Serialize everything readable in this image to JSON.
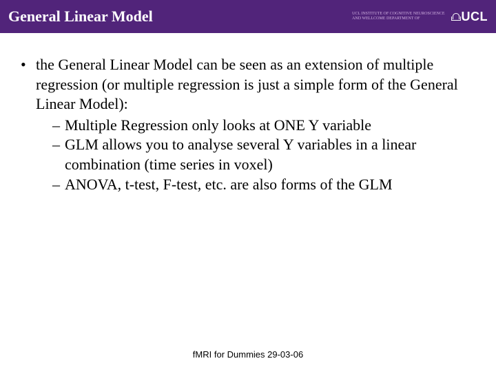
{
  "header": {
    "title": "General Linear Model",
    "institute_line1": "UCL INSTITUTE OF COGNITIVE NEUROSCIENCE",
    "institute_line2": "AND WELLCOME DEPARTMENT OF",
    "logo_text": "UCL"
  },
  "content": {
    "main_bullet": "the General Linear Model can be seen as an extension of multiple regression (or multiple regression is just a simple form of the General Linear Model):",
    "sub1": "Multiple Regression only looks at ONE Y variable",
    "sub2": "GLM allows you to analyse several Y variables in a linear combination  (time series in voxel)",
    "sub3": "ANOVA, t-test, F-test, etc. are also forms of the GLM"
  },
  "footer": {
    "text": "fMRI for Dummies 29-03-06"
  },
  "colors": {
    "header_bg": "#51247a",
    "header_fg": "#ffffff",
    "body_bg": "#ffffff",
    "text": "#000000"
  }
}
